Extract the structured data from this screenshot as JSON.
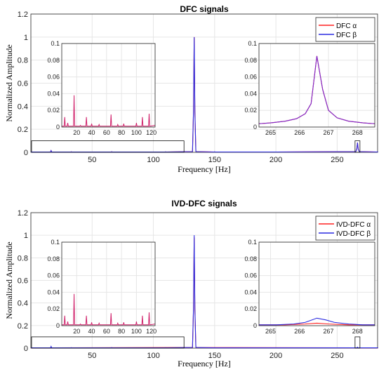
{
  "chart_data": [
    {
      "type": "line",
      "title": "DFC signals",
      "xlabel": "Frequency [Hz]",
      "ylabel": "Normalized Amplitude",
      "xlim": [
        0,
        283
      ],
      "ylim": [
        0,
        1.2
      ],
      "xticks": [
        "50",
        "100",
        "150",
        "200",
        "250"
      ],
      "yticks": [
        "0",
        "0.2",
        "0.4",
        "0.6",
        "0.8",
        "1",
        "1.2"
      ],
      "grid": true,
      "legend_position": "top-right",
      "series": [
        {
          "name": "DFC α",
          "color": "#ff2020",
          "points": [
            [
              0,
              0.003
            ],
            [
              16.5,
              0.015
            ],
            [
              33,
              0.004
            ],
            [
              66,
              0.005
            ],
            [
              110,
              0.004
            ],
            [
              133.3,
              1.0
            ],
            [
              150,
              0.004
            ],
            [
              200,
              0.003
            ],
            [
              266.6,
              0.085
            ],
            [
              283,
              0.003
            ]
          ]
        },
        {
          "name": "DFC β",
          "color": "#2a2ae0",
          "points": [
            [
              0,
              0.003
            ],
            [
              16.5,
              0.015
            ],
            [
              33,
              0.004
            ],
            [
              66,
              0.005
            ],
            [
              110,
              0.004
            ],
            [
              133.3,
              1.0
            ],
            [
              150,
              0.004
            ],
            [
              200,
              0.003
            ],
            [
              266.6,
              0.085
            ],
            [
              283,
              0.003
            ]
          ]
        }
      ],
      "insets": [
        {
          "xlim": [
            0,
            125
          ],
          "ylim": [
            0,
            0.1
          ],
          "xticks": [
            "20",
            "40",
            "60",
            "80",
            "100",
            "120"
          ],
          "yticks": [
            "0",
            "0.02",
            "0.04",
            "0.06",
            "0.08",
            "0.1"
          ],
          "spikes": [
            [
              4,
              0.012
            ],
            [
              8,
              0.005
            ],
            [
              16.5,
              0.038
            ],
            [
              25,
              0.002
            ],
            [
              33,
              0.012
            ],
            [
              40,
              0.004
            ],
            [
              50,
              0.003
            ],
            [
              66,
              0.015
            ],
            [
              75,
              0.003
            ],
            [
              83,
              0.004
            ],
            [
              100,
              0.005
            ],
            [
              108,
              0.012
            ],
            [
              117,
              0.016
            ]
          ]
        },
        {
          "xlim": [
            264.6,
            268.6
          ],
          "ylim": [
            0,
            0.1
          ],
          "xticks": [
            "265",
            "266",
            "267",
            "268"
          ],
          "yticks": [
            "0",
            "0.02",
            "0.04",
            "0.06",
            "0.08",
            "0.1"
          ],
          "curve": [
            [
              264.6,
              0.004
            ],
            [
              265.0,
              0.005
            ],
            [
              265.5,
              0.007
            ],
            [
              265.9,
              0.01
            ],
            [
              266.2,
              0.016
            ],
            [
              266.4,
              0.028
            ],
            [
              266.6,
              0.085
            ],
            [
              266.8,
              0.045
            ],
            [
              267.0,
              0.02
            ],
            [
              267.3,
              0.011
            ],
            [
              267.7,
              0.007
            ],
            [
              268.2,
              0.005
            ],
            [
              268.6,
              0.004
            ]
          ]
        }
      ]
    },
    {
      "type": "line",
      "title": "IVD-DFC signals",
      "xlabel": "Frequency [Hz]",
      "ylabel": "Normalized Amplitude",
      "xlim": [
        0,
        283
      ],
      "ylim": [
        0,
        1.2
      ],
      "xticks": [
        "50",
        "100",
        "150",
        "200",
        "250"
      ],
      "yticks": [
        "0",
        "0.2",
        "0.4",
        "0.6",
        "0.8",
        "1",
        "1.2"
      ],
      "grid": true,
      "legend_position": "top-right",
      "series": [
        {
          "name": "IVD-DFC α",
          "color": "#ff2020",
          "points": [
            [
              0,
              0.002
            ],
            [
              16.5,
              0.003
            ],
            [
              133.3,
              0.98
            ],
            [
              266.6,
              0.002
            ],
            [
              283,
              0.002
            ]
          ]
        },
        {
          "name": "IVD-DFC β",
          "color": "#2a2ae0",
          "points": [
            [
              0,
              0.003
            ],
            [
              16.5,
              0.015
            ],
            [
              33,
              0.004
            ],
            [
              66,
              0.005
            ],
            [
              110,
              0.004
            ],
            [
              133.3,
              1.0
            ],
            [
              150,
              0.004
            ],
            [
              200,
              0.003
            ],
            [
              266.6,
              0.009
            ],
            [
              283,
              0.003
            ]
          ]
        }
      ],
      "insets": [
        {
          "xlim": [
            0,
            125
          ],
          "ylim": [
            0,
            0.1
          ],
          "xticks": [
            "20",
            "40",
            "60",
            "80",
            "100",
            "120"
          ],
          "yticks": [
            "0",
            "0.02",
            "0.04",
            "0.06",
            "0.08",
            "0.1"
          ],
          "spikes": [
            [
              4,
              0.012
            ],
            [
              8,
              0.005
            ],
            [
              16.5,
              0.038
            ],
            [
              25,
              0.002
            ],
            [
              33,
              0.012
            ],
            [
              40,
              0.004
            ],
            [
              50,
              0.003
            ],
            [
              66,
              0.015
            ],
            [
              75,
              0.003
            ],
            [
              83,
              0.004
            ],
            [
              100,
              0.005
            ],
            [
              108,
              0.012
            ],
            [
              117,
              0.016
            ]
          ]
        },
        {
          "xlim": [
            264.6,
            268.6
          ],
          "ylim": [
            0,
            0.1
          ],
          "xticks": [
            "265",
            "266",
            "267",
            "268"
          ],
          "yticks": [
            "0",
            "0.02",
            "0.04",
            "0.06",
            "0.08",
            "0.1"
          ],
          "curve_alpha": [
            [
              264.6,
              0.001
            ],
            [
              265.5,
              0.001
            ],
            [
              266.2,
              0.002
            ],
            [
              266.6,
              0.003
            ],
            [
              267.0,
              0.002
            ],
            [
              267.7,
              0.001
            ],
            [
              268.6,
              0.001
            ]
          ],
          "curve_beta": [
            [
              264.6,
              0.001
            ],
            [
              265.2,
              0.001
            ],
            [
              265.8,
              0.002
            ],
            [
              266.2,
              0.004
            ],
            [
              266.6,
              0.009
            ],
            [
              266.9,
              0.007
            ],
            [
              267.2,
              0.004
            ],
            [
              267.7,
              0.002
            ],
            [
              268.2,
              0.001
            ],
            [
              268.6,
              0.001
            ]
          ]
        }
      ]
    }
  ]
}
